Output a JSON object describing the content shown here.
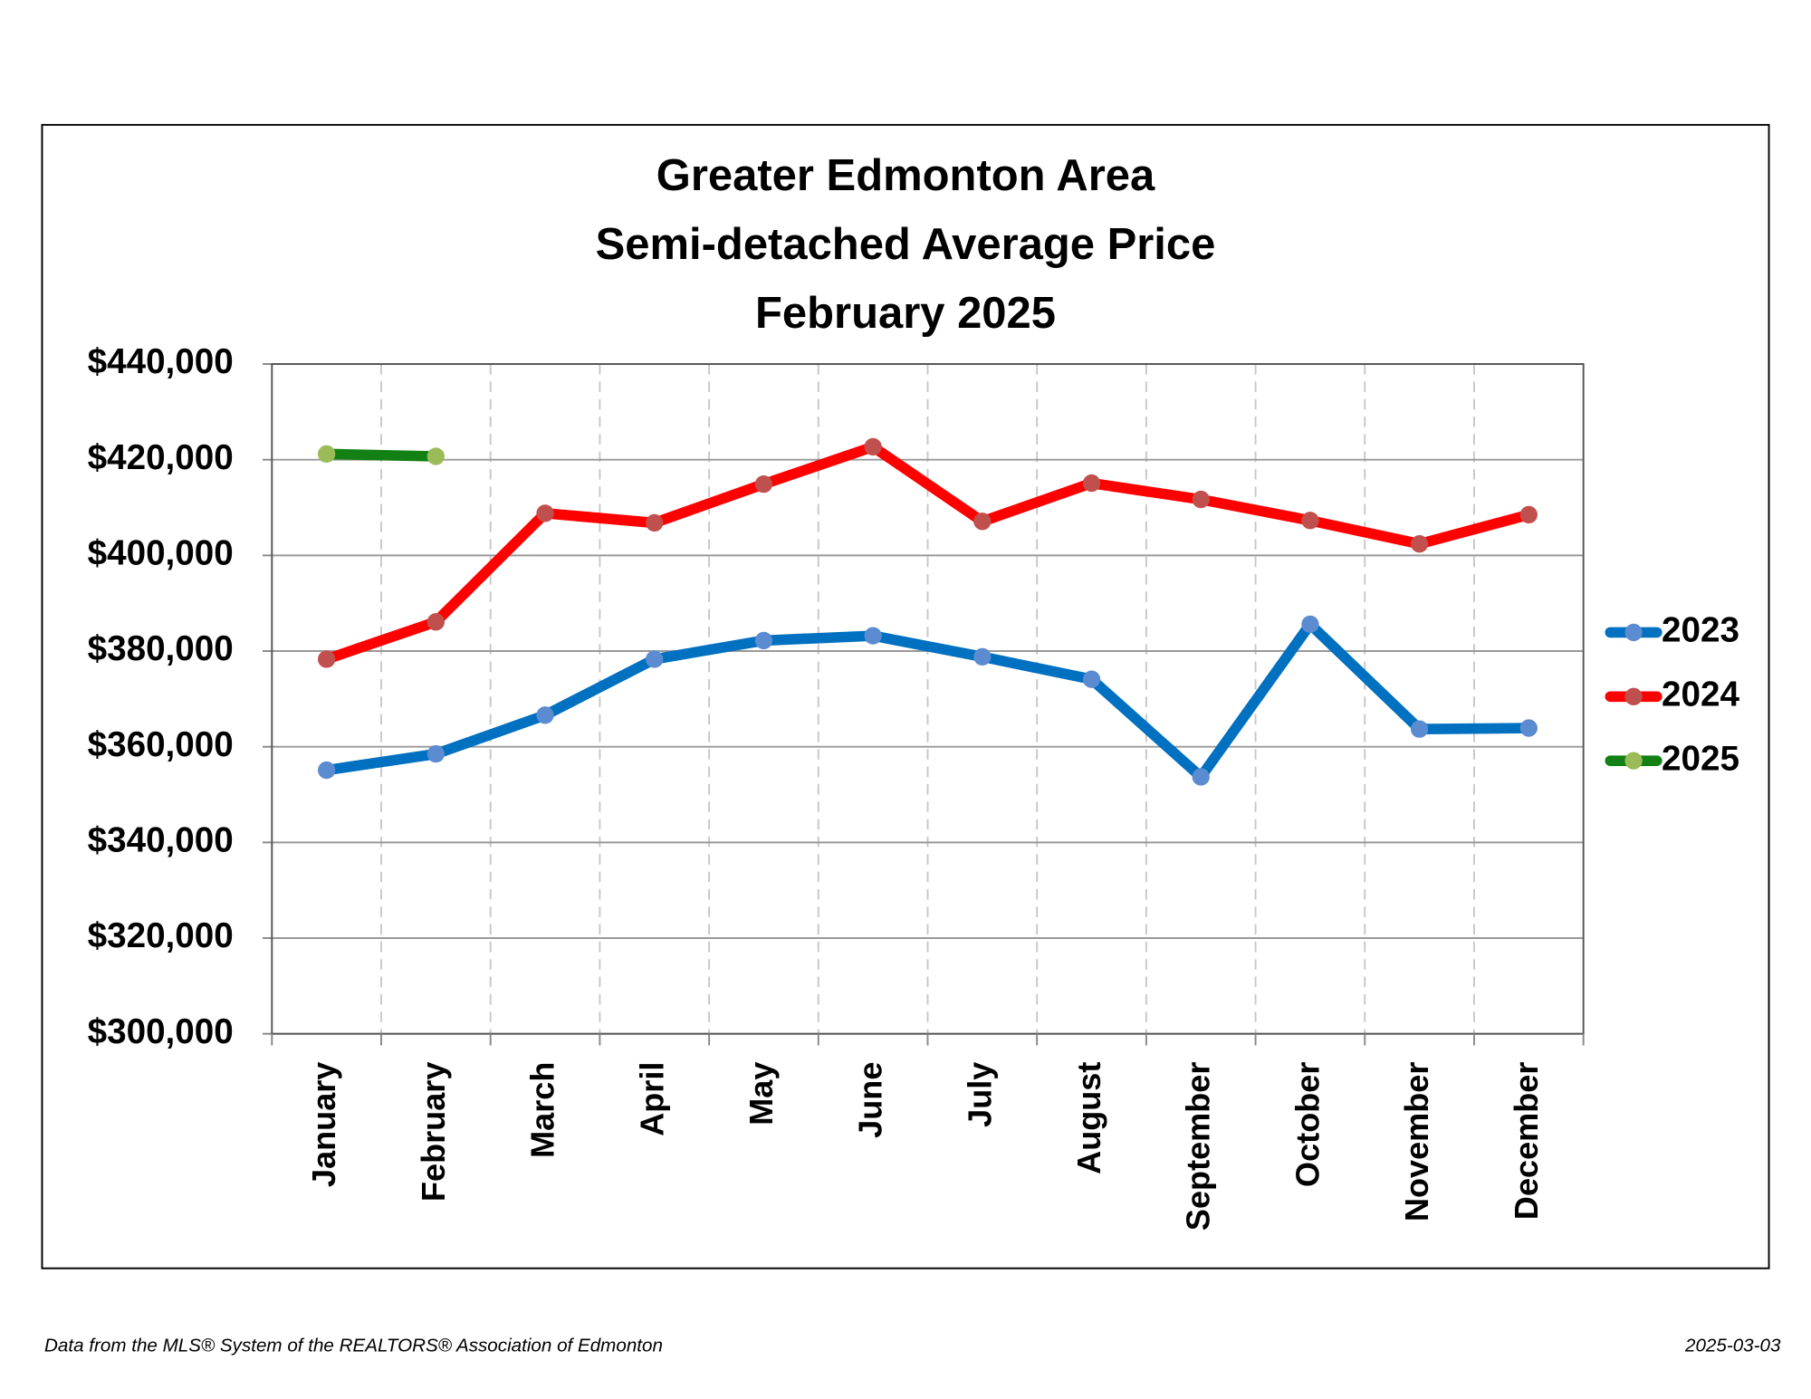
{
  "chart_data": {
    "type": "line",
    "title": [
      "Greater Edmonton Area",
      "Semi-detached Average Price",
      "February 2025"
    ],
    "categories": [
      "January",
      "February",
      "March",
      "April",
      "May",
      "June",
      "July",
      "August",
      "September",
      "October",
      "November",
      "December"
    ],
    "series": [
      {
        "name": "2023",
        "color": "#0070c0",
        "marker_color": "#5b8bd0",
        "values": [
          355100,
          358500,
          366600,
          378300,
          382200,
          383200,
          378800,
          374100,
          353700,
          385600,
          363700,
          363900
        ]
      },
      {
        "name": "2024",
        "color": "#ff0000",
        "marker_color": "#c0504d",
        "values": [
          378300,
          386100,
          408800,
          406800,
          414900,
          422700,
          407100,
          415100,
          411700,
          407300,
          402400,
          408500
        ]
      },
      {
        "name": "2025",
        "color": "#138013",
        "marker_color": "#9bbb59",
        "values": [
          421200,
          420700,
          null,
          null,
          null,
          null,
          null,
          null,
          null,
          null,
          null,
          null
        ]
      }
    ],
    "ylim": [
      300000,
      440000
    ],
    "yticks": [
      {
        "value": 300000,
        "label": "$300,000"
      },
      {
        "value": 320000,
        "label": "$320,000"
      },
      {
        "value": 340000,
        "label": "$340,000"
      },
      {
        "value": 360000,
        "label": "$360,000"
      },
      {
        "value": 380000,
        "label": "$380,000"
      },
      {
        "value": 400000,
        "label": "$400,000"
      },
      {
        "value": 420000,
        "label": "$420,000"
      },
      {
        "value": 440000,
        "label": "$440,000"
      }
    ],
    "grid": true,
    "legend": "right",
    "source": "Data from the MLS® System of the REALTORS® Association of Edmonton",
    "date": "2025-03-03"
  }
}
